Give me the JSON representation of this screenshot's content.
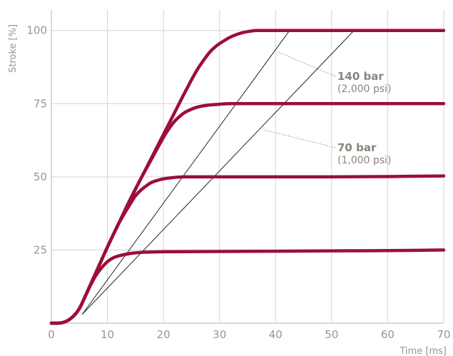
{
  "chart_data": {
    "type": "line",
    "title": "",
    "xlabel": "Time [ms]",
    "ylabel": "Stroke [%]",
    "xlim": [
      0,
      70
    ],
    "ylim": [
      0,
      107
    ],
    "x_ticks": [
      0,
      10,
      20,
      30,
      40,
      50,
      60,
      70
    ],
    "y_ticks": [
      25,
      50,
      75,
      100
    ],
    "x_tick_labels": [
      "0",
      "10",
      "20",
      "30",
      "40",
      "50",
      "60",
      "70"
    ],
    "y_tick_labels": [
      "25",
      "50",
      "75",
      "100"
    ],
    "grid": true,
    "legend": "none",
    "colors": {
      "curve": "#9b0f39",
      "reference": "#222222",
      "grid": "#d7d3cf",
      "text": "#9a948e"
    },
    "series": [
      {
        "x": [
          0,
          1,
          2,
          3,
          4,
          5,
          6,
          7,
          8,
          9,
          10,
          11,
          12,
          14,
          16,
          18,
          20,
          30,
          40,
          50,
          60,
          70
        ],
        "y": [
          0,
          0,
          0.2,
          1,
          2.5,
          5,
          9,
          13,
          16.5,
          19,
          21,
          22.3,
          23,
          23.8,
          24.2,
          24.3,
          24.4,
          24.5,
          24.6,
          24.7,
          24.8,
          25
        ]
      },
      {
        "x": [
          0,
          1,
          2,
          3,
          4,
          5,
          6,
          8,
          10,
          12,
          14,
          15,
          16,
          17,
          18,
          20,
          22,
          24,
          30,
          40,
          50,
          60,
          70
        ],
        "y": [
          0,
          0,
          0.2,
          1,
          2.5,
          5,
          9,
          17.5,
          26,
          34,
          40.5,
          43.5,
          45.5,
          47,
          48.2,
          49.3,
          49.8,
          50,
          50,
          50,
          50,
          50.1,
          50.3
        ]
      },
      {
        "x": [
          0,
          1,
          2,
          3,
          4,
          5,
          6,
          8,
          10,
          12,
          14,
          16,
          18,
          20,
          21,
          22,
          23,
          24,
          26,
          28,
          30,
          32,
          40,
          50,
          60,
          70
        ],
        "y": [
          0,
          0,
          0.2,
          1,
          2.5,
          5,
          9,
          17.5,
          26,
          34,
          42,
          49.5,
          56.5,
          63.5,
          66.5,
          69,
          70.8,
          72.2,
          73.8,
          74.5,
          74.8,
          75,
          75,
          75,
          75,
          75
        ]
      },
      {
        "x": [
          0,
          1,
          2,
          3,
          4,
          5,
          6,
          8,
          10,
          12,
          14,
          16,
          18,
          20,
          22,
          24,
          26,
          28,
          29,
          30,
          32,
          34,
          36,
          37,
          40,
          50,
          60,
          70
        ],
        "y": [
          0,
          0,
          0.2,
          1,
          2.5,
          5,
          9,
          17.5,
          26,
          34,
          42,
          49.5,
          57,
          64.5,
          72,
          79.5,
          86.5,
          92,
          94,
          95.5,
          97.8,
          99.2,
          99.9,
          100,
          100,
          100,
          100,
          100
        ]
      }
    ],
    "reference_lines": [
      {
        "x": [
          5.5,
          42.5
        ],
        "y": [
          3,
          100
        ]
      },
      {
        "x": [
          5.5,
          54
        ],
        "y": [
          3,
          100
        ]
      }
    ],
    "annotations": [
      {
        "bold": "140 bar",
        "sub": "(2,000 psi)",
        "target": [
          40.3,
          92.8
        ]
      },
      {
        "bold": "70 bar",
        "sub": "(1,000 psi)",
        "target": [
          38,
          66
        ]
      }
    ]
  }
}
